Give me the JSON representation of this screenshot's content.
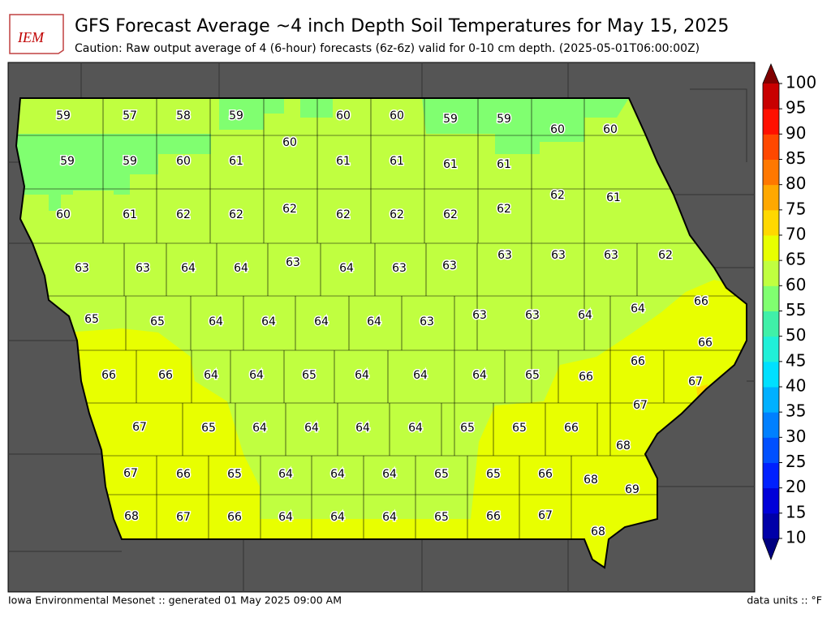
{
  "logo": "IEM",
  "title": "GFS Forecast Average ~4 inch Depth Soil Temperatures for May 15, 2025",
  "subtitle": "Caution: Raw output average of 4 (6-hour) forecasts (6z-6z) valid for 0-10 cm depth. (2025-05-01T06:00:00Z)",
  "footer_left": "Iowa Environmental Mesonet :: generated 01 May 2025 09:00 AM",
  "footer_right": "data units :: °F",
  "colorbar": {
    "ticks": [
      10,
      15,
      20,
      25,
      30,
      35,
      40,
      45,
      50,
      55,
      60,
      65,
      70,
      75,
      80,
      85,
      90,
      95,
      100
    ],
    "colors": [
      "#0000a8",
      "#0000d8",
      "#0020ff",
      "#0050ff",
      "#0080ff",
      "#00b0ff",
      "#00e0ff",
      "#20f0d8",
      "#40f0a8",
      "#80ff70",
      "#c0ff40",
      "#e8ff00",
      "#ffd800",
      "#ffa800",
      "#ff7800",
      "#ff4800",
      "#ff1000",
      "#c80000"
    ],
    "under_color": "#000080",
    "over_color": "#800000"
  },
  "county_values": [
    59,
    57,
    58,
    59,
    60,
    60,
    59,
    59,
    60,
    60,
    60,
    59,
    59,
    60,
    61,
    61,
    61,
    61,
    61,
    62,
    61,
    60,
    61,
    62,
    62,
    62,
    62,
    62,
    62,
    62,
    63,
    63,
    64,
    64,
    63,
    64,
    63,
    63,
    63,
    63,
    63,
    62,
    65,
    65,
    64,
    64,
    64,
    64,
    63,
    63,
    63,
    64,
    64,
    66,
    66,
    66,
    64,
    64,
    65,
    64,
    64,
    64,
    65,
    66,
    66,
    66,
    67,
    67,
    65,
    64,
    64,
    64,
    64,
    65,
    65,
    66,
    67,
    68,
    67,
    66,
    65,
    64,
    64,
    64,
    65,
    65,
    66,
    68,
    69,
    68,
    67,
    66,
    64,
    64,
    64,
    65,
    66,
    67,
    68
  ]
}
